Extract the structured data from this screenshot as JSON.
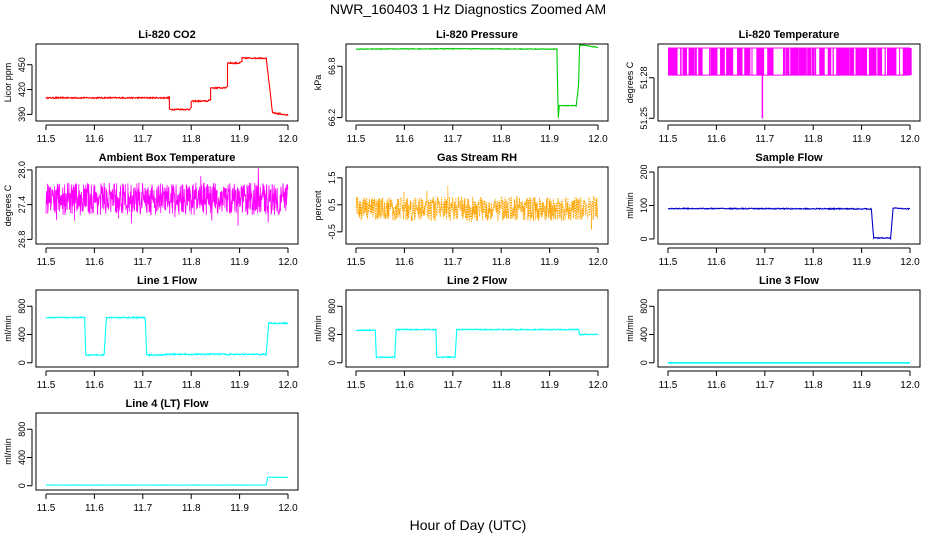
{
  "figure": {
    "title": "NWR_160403  1 Hz Diagnostics Zoomed AM",
    "xlabel": "Hour of Day (UTC)"
  },
  "chart_data": [
    {
      "type": "line",
      "title": "Li-820 CO2",
      "ylabel": "Licor ppm",
      "color": "#ff0000",
      "xlim": [
        11.5,
        12.0
      ],
      "xticks": [
        "11.5",
        "11.6",
        "11.7",
        "11.8",
        "11.9",
        "12.0"
      ],
      "ylim": [
        382,
        475
      ],
      "yticks": [
        390,
        420,
        450
      ],
      "ytick_labels": [
        "390",
        "420",
        "450"
      ],
      "noise": 0.8,
      "series": [
        {
          "points": [
            [
              11.5,
              410
            ],
            [
              11.755,
              410
            ],
            [
              11.755,
              396
            ],
            [
              11.795,
              396
            ],
            [
              11.8,
              398
            ],
            [
              11.8,
              406
            ],
            [
              11.835,
              406
            ],
            [
              11.84,
              408
            ],
            [
              11.84,
              422
            ],
            [
              11.87,
              422
            ],
            [
              11.875,
              424
            ],
            [
              11.875,
              452
            ],
            [
              11.9,
              452
            ],
            [
              11.905,
              454
            ],
            [
              11.905,
              458
            ],
            [
              11.955,
              458
            ],
            [
              11.968,
              392
            ],
            [
              12.0,
              389
            ]
          ]
        }
      ]
    },
    {
      "type": "line",
      "title": "Li-820 Pressure",
      "ylabel": "kPa",
      "color": "#00cc00",
      "xlim": [
        11.5,
        12.0
      ],
      "xticks": [
        "11.5",
        "11.6",
        "11.7",
        "11.8",
        "11.9",
        "12.0"
      ],
      "ylim": [
        66.16,
        67.06
      ],
      "yticks": [
        66.2,
        66.8
      ],
      "ytick_labels": [
        "66.2",
        "66.8"
      ],
      "noise": 0.004,
      "series": [
        {
          "points": [
            [
              11.5,
              67.0
            ],
            [
              11.7,
              67.005
            ],
            [
              11.915,
              67.0
            ],
            [
              11.918,
              66.2
            ],
            [
              11.92,
              66.34
            ],
            [
              11.955,
              66.34
            ],
            [
              11.96,
              66.6
            ],
            [
              11.962,
              67.05
            ],
            [
              12.0,
              67.02
            ]
          ]
        }
      ]
    },
    {
      "type": "line",
      "title": "Li-820 Temperature",
      "ylabel": "degrees C",
      "color": "#ff00ff",
      "xlim": [
        11.5,
        12.0
      ],
      "xticks": [
        "11.5",
        "11.6",
        "11.7",
        "11.8",
        "11.9",
        "12.0"
      ],
      "ylim": [
        51.248,
        51.305
      ],
      "yticks": [
        51.25,
        51.28
      ],
      "ytick_labels": [
        "51.25",
        "51.28"
      ],
      "levels": [
        51.282,
        51.302
      ],
      "spike": {
        "x": 11.695,
        "y": 51.25
      }
    },
    {
      "type": "line",
      "title": "Ambient Box Temperature",
      "ylabel": "degrees C",
      "color": "#ff00ff",
      "xlim": [
        11.5,
        12.0
      ],
      "xticks": [
        "11.5",
        "11.6",
        "11.7",
        "11.8",
        "11.9",
        "12.0"
      ],
      "ylim": [
        26.72,
        28.05
      ],
      "yticks": [
        26.8,
        27.4,
        28.0
      ],
      "ytick_labels": [
        "26.8",
        "27.4",
        "28.0"
      ],
      "center": 27.5,
      "amplitude": 0.28
    },
    {
      "type": "scatter",
      "title": "Gas Stream RH",
      "ylabel": "percent",
      "color": "#ffa500",
      "xlim": [
        11.5,
        12.0
      ],
      "xticks": [
        "11.5",
        "11.6",
        "11.7",
        "11.8",
        "11.9",
        "12.0"
      ],
      "ylim": [
        -0.95,
        1.9
      ],
      "yticks": [
        -0.5,
        0.5,
        1.5
      ],
      "ytick_labels": [
        "-0.5",
        "0.5",
        "1.5"
      ],
      "center": 0.35,
      "amplitude": 0.45
    },
    {
      "type": "line",
      "title": "Sample Flow",
      "ylabel": "ml/min",
      "color": "#0000cc",
      "xlim": [
        11.5,
        12.0
      ],
      "xticks": [
        "11.5",
        "11.6",
        "11.7",
        "11.8",
        "11.9",
        "12.0"
      ],
      "ylim": [
        -15,
        215
      ],
      "yticks": [
        0,
        100,
        200
      ],
      "ytick_labels": [
        "0",
        "100",
        "200"
      ],
      "noise": 1.5,
      "series": [
        {
          "points": [
            [
              11.5,
              91
            ],
            [
              11.92,
              90
            ],
            [
              11.925,
              3
            ],
            [
              11.96,
              3
            ],
            [
              11.965,
              92
            ],
            [
              12.0,
              90
            ]
          ]
        }
      ]
    },
    {
      "type": "line",
      "title": "Line 1 Flow",
      "ylabel": "ml/min",
      "color": "#00ffff",
      "xlim": [
        11.5,
        12.0
      ],
      "xticks": [
        "11.5",
        "11.6",
        "11.7",
        "11.8",
        "11.9",
        "12.0"
      ],
      "ylim": [
        -60,
        1030
      ],
      "yticks": [
        0,
        400,
        800
      ],
      "ytick_labels": [
        "0",
        "400",
        "800"
      ],
      "noise": 9,
      "series": [
        {
          "points": [
            [
              11.5,
              640
            ],
            [
              11.58,
              640
            ],
            [
              11.582,
              110
            ],
            [
              11.62,
              110
            ],
            [
              11.625,
              640
            ],
            [
              11.705,
              640
            ],
            [
              11.708,
              110
            ],
            [
              11.745,
              110
            ],
            [
              11.748,
              120
            ],
            [
              11.955,
              120
            ],
            [
              11.96,
              560
            ],
            [
              12.0,
              560
            ]
          ]
        }
      ]
    },
    {
      "type": "line",
      "title": "Line 2 Flow",
      "ylabel": "ml/min",
      "color": "#00ffff",
      "xlim": [
        11.5,
        12.0
      ],
      "xticks": [
        "11.5",
        "11.6",
        "11.7",
        "11.8",
        "11.9",
        "12.0"
      ],
      "ylim": [
        -60,
        1030
      ],
      "yticks": [
        0,
        400,
        800
      ],
      "ytick_labels": [
        "0",
        "400",
        "800"
      ],
      "noise": 7,
      "series": [
        {
          "points": [
            [
              11.5,
              460
            ],
            [
              11.54,
              460
            ],
            [
              11.542,
              80
            ],
            [
              11.58,
              80
            ],
            [
              11.583,
              470
            ],
            [
              11.665,
              470
            ],
            [
              11.667,
              80
            ],
            [
              11.705,
              80
            ],
            [
              11.708,
              470
            ],
            [
              11.96,
              470
            ],
            [
              11.962,
              400
            ],
            [
              12.0,
              400
            ]
          ]
        }
      ]
    },
    {
      "type": "line",
      "title": "Line 3 Flow",
      "ylabel": "ml/min",
      "color": "#00ffff",
      "xlim": [
        11.5,
        12.0
      ],
      "xticks": [
        "11.5",
        "11.6",
        "11.7",
        "11.8",
        "11.9",
        "12.0"
      ],
      "ylim": [
        -60,
        1030
      ],
      "yticks": [
        0,
        400,
        800
      ],
      "ytick_labels": [
        "0",
        "400",
        "800"
      ],
      "noise": 0,
      "series": [
        {
          "points": [
            [
              11.5,
              0
            ],
            [
              12.0,
              0
            ]
          ]
        }
      ]
    },
    {
      "type": "line",
      "title": "Line 4 (LT) Flow",
      "ylabel": "ml/min",
      "color": "#00ffff",
      "xlim": [
        11.5,
        12.0
      ],
      "xticks": [
        "11.5",
        "11.6",
        "11.7",
        "11.8",
        "11.9",
        "12.0"
      ],
      "ylim": [
        -60,
        1030
      ],
      "yticks": [
        0,
        400,
        800
      ],
      "ytick_labels": [
        "0",
        "400",
        "800"
      ],
      "noise": 2,
      "series": [
        {
          "points": [
            [
              11.5,
              10
            ],
            [
              11.955,
              10
            ],
            [
              11.958,
              120
            ],
            [
              12.0,
              120
            ]
          ]
        }
      ]
    }
  ]
}
